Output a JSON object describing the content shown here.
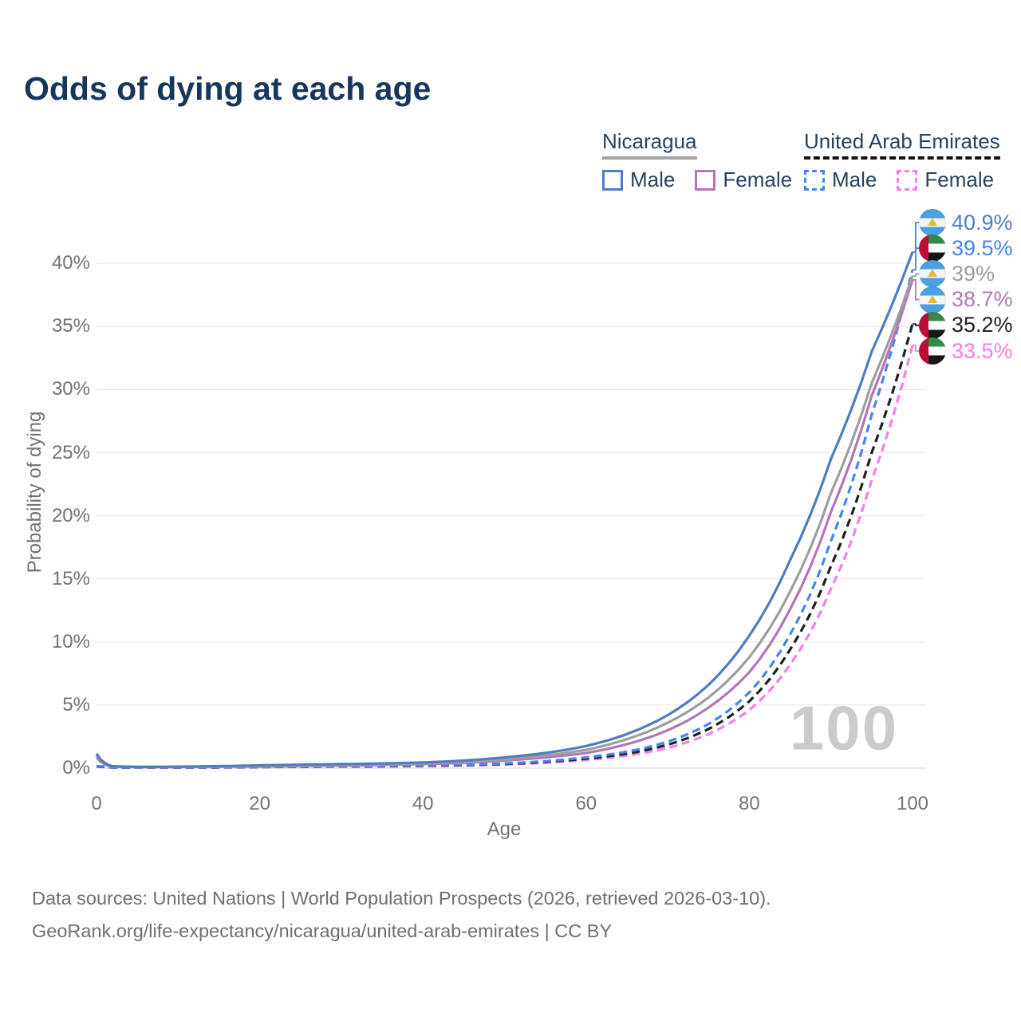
{
  "title": "Odds of dying at each age",
  "legend": {
    "groups": [
      {
        "label": "Nicaragua",
        "line_style": "solid",
        "line_color": "#a3a3a3",
        "items": [
          {
            "label": "Male",
            "color": "#4f7cc4",
            "dashed": false
          },
          {
            "label": "Female",
            "color": "#b477b4",
            "dashed": false
          }
        ]
      },
      {
        "label": "United Arab Emirates",
        "line_style": "dashed",
        "line_color": "#141414",
        "items": [
          {
            "label": "Male",
            "color": "#4285f4",
            "dashed": true
          },
          {
            "label": "Female",
            "color": "#fb7ce3",
            "dashed": true
          }
        ]
      }
    ]
  },
  "chart_data": {
    "type": "line",
    "title": "Odds of dying at each age",
    "xlabel": "Age",
    "ylabel": "Probability of dying",
    "xlim": [
      0,
      100
    ],
    "ylim": [
      0,
      43
    ],
    "x_tick_values": [
      0,
      20,
      40,
      60,
      80,
      100
    ],
    "x_tick_labels": [
      "0",
      "20",
      "40",
      "60",
      "80",
      "100"
    ],
    "y_tick_values": [
      0,
      5,
      10,
      15,
      20,
      25,
      30,
      35,
      40
    ],
    "y_tick_labels": [
      "0%",
      "5%",
      "10%",
      "15%",
      "20%",
      "25%",
      "30%",
      "35%",
      "40%"
    ],
    "grid": "horizontal",
    "legend_position": "top-right",
    "watermark": "100",
    "unit": "%",
    "ages": [
      0,
      2,
      5,
      10,
      15,
      20,
      25,
      30,
      35,
      40,
      45,
      50,
      55,
      60,
      65,
      70,
      75,
      80,
      85,
      90,
      95,
      100
    ],
    "series": [
      {
        "name": "United Arab Emirates Female",
        "country": "United Arab Emirates",
        "sex": "Female",
        "color": "#fb7ce3",
        "dashed": true,
        "flag": "uae",
        "end_label": "33.5%",
        "values": [
          0.14,
          0.05,
          0.035,
          0.04,
          0.05,
          0.07,
          0.09,
          0.11,
          0.13,
          0.16,
          0.21,
          0.29,
          0.43,
          0.65,
          1.0,
          1.6,
          2.7,
          4.6,
          8.2,
          14.2,
          22.8,
          33.5
        ]
      },
      {
        "name": "United Arab Emirates",
        "country": "United Arab Emirates",
        "sex": "Both",
        "color": "#1f1f1f",
        "dashed": true,
        "flag": "uae",
        "end_label": "35.2%",
        "values": [
          0.16,
          0.055,
          0.04,
          0.045,
          0.06,
          0.09,
          0.11,
          0.13,
          0.15,
          0.19,
          0.24,
          0.33,
          0.5,
          0.75,
          1.15,
          1.85,
          3.1,
          5.3,
          9.4,
          16.0,
          25.0,
          35.2
        ]
      },
      {
        "name": "United Arab Emirates Male",
        "country": "United Arab Emirates",
        "sex": "Male",
        "color": "#4285f4",
        "dashed": true,
        "flag": "uae",
        "end_label": "39.5%",
        "values": [
          0.18,
          0.06,
          0.04,
          0.05,
          0.07,
          0.1,
          0.12,
          0.14,
          0.17,
          0.21,
          0.27,
          0.37,
          0.55,
          0.85,
          1.3,
          2.1,
          3.5,
          6.0,
          10.6,
          18.0,
          28.0,
          39.5
        ]
      },
      {
        "name": "Nicaragua Female",
        "country": "Nicaragua",
        "sex": "Female",
        "color": "#b477b4",
        "dashed": false,
        "flag": "nicaragua",
        "end_label": "38.7%",
        "values": [
          0.85,
          0.11,
          0.08,
          0.09,
          0.11,
          0.13,
          0.16,
          0.2,
          0.25,
          0.32,
          0.42,
          0.6,
          0.85,
          1.2,
          1.9,
          3.0,
          4.8,
          7.6,
          12.6,
          20.3,
          29.5,
          38.7
        ]
      },
      {
        "name": "Nicaragua",
        "country": "Nicaragua",
        "sex": "Both",
        "color": "#9e9e9e",
        "dashed": false,
        "flag": "nicaragua",
        "end_label": "39%",
        "values": [
          1.0,
          0.13,
          0.09,
          0.1,
          0.13,
          0.17,
          0.22,
          0.26,
          0.3,
          0.38,
          0.5,
          0.7,
          1.0,
          1.45,
          2.3,
          3.6,
          5.6,
          8.8,
          14.0,
          21.8,
          30.5,
          39.0
        ]
      },
      {
        "name": "Nicaragua Male",
        "country": "Nicaragua",
        "sex": "Male",
        "color": "#4f7cc4",
        "dashed": false,
        "flag": "nicaragua",
        "end_label": "40.9%",
        "values": [
          1.15,
          0.15,
          0.1,
          0.12,
          0.16,
          0.22,
          0.28,
          0.32,
          0.37,
          0.45,
          0.6,
          0.85,
          1.2,
          1.75,
          2.7,
          4.2,
          6.6,
          10.5,
          16.5,
          24.5,
          33.0,
          40.9
        ]
      }
    ]
  },
  "footer": {
    "line1": "Data sources: United Nations | World Population Prospects (2026, retrieved 2026-03-10).",
    "line2": "GeoRank.org/life-expectancy/nicaragua/united-arab-emirates | CC BY"
  }
}
